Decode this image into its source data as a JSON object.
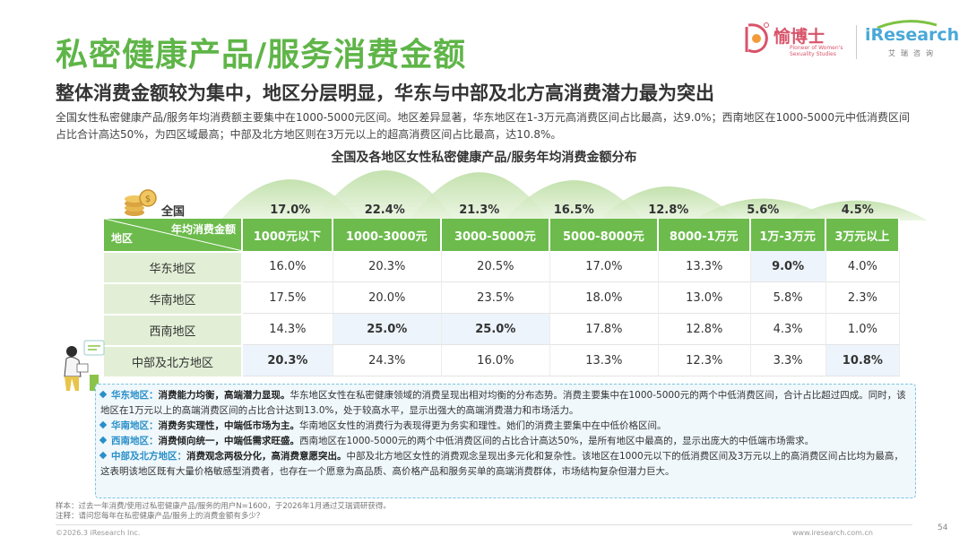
{
  "header": {
    "title": "私密健康产品/服务消费金额",
    "subtitle": "整体消费金额较为集中，地区分层明显，华东与中部及北方高消费潜力最为突出",
    "intro": "全国女性私密健康产品/服务年均消费额主要集中在1000-5000元区间。地区差异显著，华东地区在1-3万元高消费区间占比最高，达9.0%；西南地区在1000-5000元中低消费区间占比合计高达50%，为四区域最高；中部及北方地区则在3万元以上的超高消费区间占比最高，达10.8%。"
  },
  "logo": {
    "cn_name": "愉博士",
    "en_line": "Pioneer of Women's Sexuality Studies",
    "ir_name": "iResearch",
    "ir_cn": "艾瑞咨询"
  },
  "chart_data": {
    "type": "table",
    "title": "全国及各地区女性私密健康产品/服务年均消费金额分布",
    "row_header": "地区",
    "col_header": "年均消费金额",
    "national_label": "全国",
    "national_values": [
      "17.0%",
      "22.4%",
      "21.3%",
      "16.5%",
      "12.8%",
      "5.6%",
      "4.5%"
    ],
    "national_numbers": [
      17.0,
      22.4,
      21.3,
      16.5,
      12.8,
      5.6,
      4.5
    ],
    "columns": [
      "1000元以下",
      "1000-3000元",
      "3000-5000元",
      "5000-8000元",
      "8000-1万元",
      "1万-3万元",
      "3万元以上"
    ],
    "rows": [
      {
        "region": "华东地区",
        "values": [
          "16.0%",
          "20.3%",
          "20.5%",
          "17.0%",
          "13.3%",
          "9.0%",
          "4.0%"
        ],
        "highlight": [
          false,
          false,
          false,
          false,
          false,
          true,
          false
        ]
      },
      {
        "region": "华南地区",
        "values": [
          "17.5%",
          "20.0%",
          "23.5%",
          "18.0%",
          "13.0%",
          "5.8%",
          "2.3%"
        ],
        "highlight": [
          false,
          false,
          false,
          false,
          false,
          false,
          false
        ]
      },
      {
        "region": "西南地区",
        "values": [
          "14.3%",
          "25.0%",
          "25.0%",
          "17.8%",
          "12.8%",
          "4.3%",
          "1.0%"
        ],
        "highlight": [
          false,
          true,
          true,
          false,
          false,
          false,
          false
        ]
      },
      {
        "region": "中部及北方地区",
        "values": [
          "20.3%",
          "24.3%",
          "16.0%",
          "13.3%",
          "12.3%",
          "3.3%",
          "10.8%"
        ],
        "highlight": [
          true,
          false,
          false,
          false,
          false,
          false,
          true
        ]
      }
    ]
  },
  "summary": [
    {
      "head": "华东地区：",
      "key": "消费能力均衡，高端潜力显现。",
      "body": "华东地区女性在私密健康领域的消费呈现出相对均衡的分布态势。消费主要集中在1000-5000元的两个中低消费区间，合计占比超过四成。同时，该地区在1万元以上的高端消费区间的占比合计达到13.0%，处于较高水平，显示出强大的高端消费潜力和市场活力。"
    },
    {
      "head": "华南地区：",
      "key": "消费务实理性，中端低市场为主。",
      "body": "华南地区女性的消费行为表现得更为务实和理性。她们的消费主要集中在中低价格区间。"
    },
    {
      "head": "西南地区：",
      "key": "消费倾向统一，中端低需求旺盛。",
      "body": "西南地区在1000-5000元的两个中低消费区间的占比合计高达50%，是所有地区中最高的，显示出庞大的中低端市场需求。"
    },
    {
      "head": "中部及北方地区：",
      "key": "消费观念两极分化，高消费意愿突出。",
      "body": "中部及北方地区女性的消费观念呈现出多元化和复杂性。该地区在1000元以下的低消费区间及3万元以上的高消费区间占比均为最高，这表明该地区既有大量价格敏感型消费者，也存在一个愿意为高品质、高价格产品和服务买单的高端消费群体，市场结构复杂但潜力巨大。"
    }
  ],
  "footnotes": {
    "sample": "样本：过去一年消费/使用过私密健康产品/服务的用户N=1600，于2026年1月通过艾瑞调研获得。",
    "note": "注释：请问您每年在私密健康产品/服务上的消费金额有多少？"
  },
  "footer": {
    "copyright": "©2026.3 iResearch Inc.",
    "website": "www.iresearch.com.cn",
    "page": "54"
  },
  "colors": {
    "green": "#5fb548",
    "table_header": "#6cbb4c",
    "region_bg": "#e2efd6",
    "highlight_bg": "#edf4fb",
    "summary_head": "#2a8fc9"
  }
}
